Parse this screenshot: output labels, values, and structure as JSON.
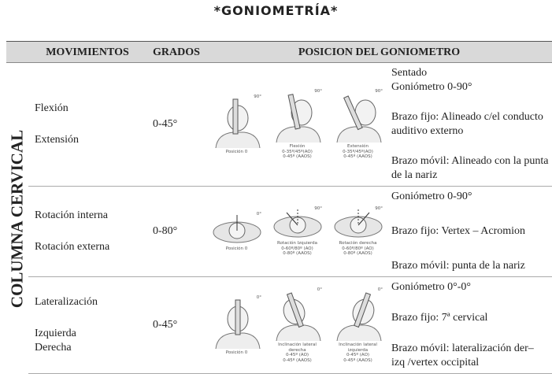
{
  "title": "*GONIOMETRÍA*",
  "table": {
    "headers": [
      "MOVIMIENTOS",
      "GRADOS",
      "POSICION DEL GONIOMETRO"
    ],
    "section_label": "COLUMNA CERVICAL",
    "rows": [
      {
        "movements": [
          [
            "Flexión"
          ],
          [
            "Extensión"
          ]
        ],
        "degrees": "0-45°",
        "figures": [
          {
            "angle": "90°",
            "caption": [
              "Posición 0"
            ]
          },
          {
            "angle": "90°",
            "caption": [
              "Flexión",
              "0-35º/45º(AO)",
              "0-45º (AAOS)"
            ]
          },
          {
            "angle": "90°",
            "caption": [
              "Extensión",
              "0-35º/45º(AO)",
              "0-45º (AAOS)"
            ]
          }
        ],
        "position": [
          [
            "Sentado",
            "Goniómetro 0-90°"
          ],
          [
            "Brazo fijo: Alineado c/el conducto auditivo externo"
          ],
          [
            "Brazo móvil: Alineado con la punta de la nariz"
          ]
        ]
      },
      {
        "movements": [
          [
            "Rotación interna"
          ],
          [
            "Rotación externa"
          ]
        ],
        "degrees": "0-80°",
        "figures": [
          {
            "angle": "0°",
            "caption": [
              "Posición 0"
            ]
          },
          {
            "angle": "90°",
            "caption": [
              "Rotación Izquierda",
              "0-60º/80º (AO)",
              "0-80º (AAOS)"
            ]
          },
          {
            "angle": "90°",
            "caption": [
              "Rotación derecha",
              "0-60º/80º (AO)",
              "0-80º (AAOS)"
            ]
          }
        ],
        "position": [
          [
            "Goniómetro 0-90°"
          ],
          [
            "Brazo fijo: Vertex – Acromion"
          ],
          [
            "Brazo móvil: punta de la nariz"
          ]
        ]
      },
      {
        "movements": [
          [
            "Lateralización"
          ],
          [
            "Izquierda",
            "Derecha"
          ]
        ],
        "degrees": "0-45°",
        "figures": [
          {
            "angle": "0°",
            "caption": [
              "Posición 0"
            ]
          },
          {
            "angle": "0°",
            "caption": [
              "Inclinación lateral",
              "derecha",
              "0-45º (AO)",
              "0-45º (AAOS)"
            ]
          },
          {
            "angle": "0°",
            "caption": [
              "Inclinación lateral",
              "izquierda",
              "0-45º (AO)",
              "0-45º (AAOS)"
            ]
          }
        ],
        "position": [
          [
            "Goniómetro 0°-0°"
          ],
          [
            "Brazo fijo: 7ª cervical"
          ],
          [
            "Brazo móvil: lateralización der– izq /vertex occipital"
          ]
        ]
      }
    ]
  }
}
